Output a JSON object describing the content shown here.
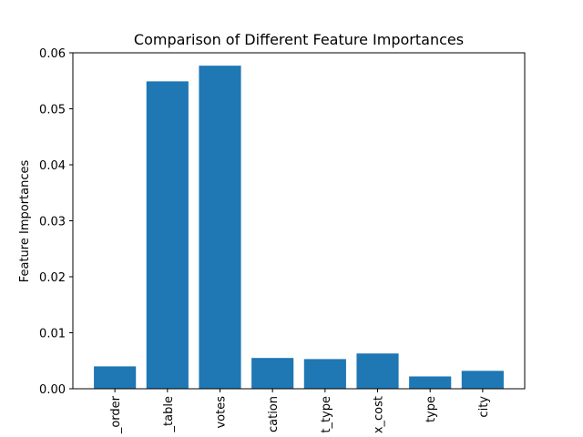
{
  "chart_data": {
    "type": "bar",
    "title": "Comparison of Different Feature Importances",
    "xlabel": "",
    "ylabel": "Feature Importances",
    "categories": [
      "_order",
      "_table",
      "votes",
      "cation",
      "t_type",
      "x_cost",
      "type",
      "city"
    ],
    "values": [
      0.004,
      0.0549,
      0.0577,
      0.0055,
      0.0053,
      0.0063,
      0.0022,
      0.0032
    ],
    "ylim": [
      0,
      0.06
    ],
    "yticks": [
      "0.00",
      "0.01",
      "0.02",
      "0.03",
      "0.04",
      "0.05",
      "0.06"
    ],
    "bar_color": "#1f77b4",
    "grid": false,
    "legend": "none"
  }
}
